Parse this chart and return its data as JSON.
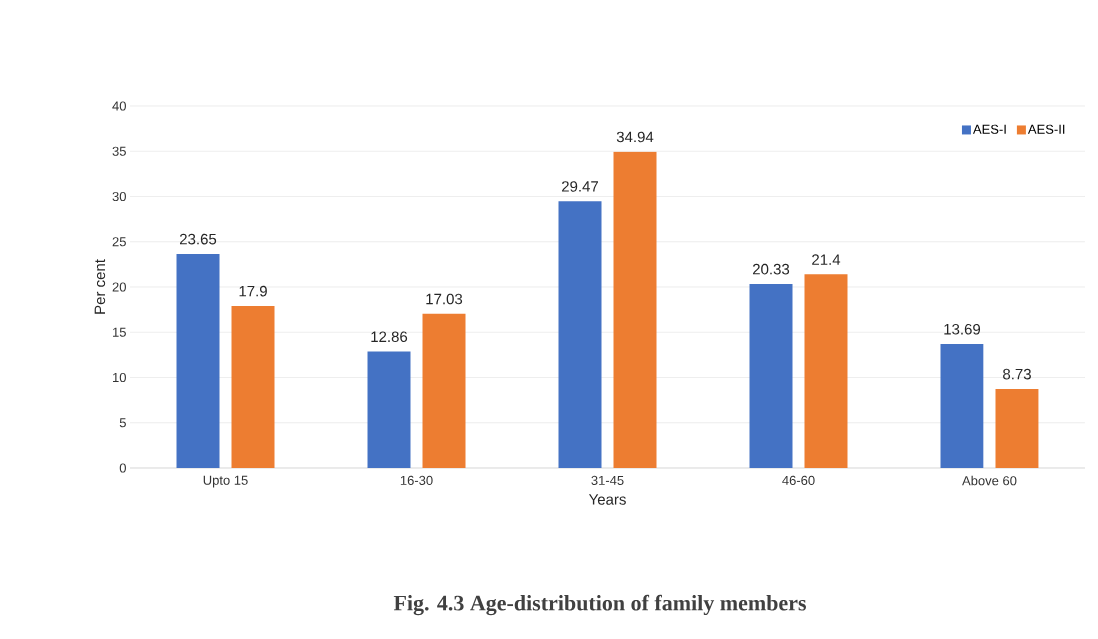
{
  "chart_data": {
    "type": "bar",
    "title": "Fig. 4.3 Age-distribution of family members",
    "xlabel": "Years",
    "ylabel": "Per cent",
    "categories": [
      "Upto 15",
      "16-30",
      "31-45",
      "46-60",
      "Above 60"
    ],
    "series": [
      {
        "name": "AES-I",
        "color": "#4472c4",
        "values": [
          23.65,
          12.86,
          29.47,
          20.33,
          13.69
        ]
      },
      {
        "name": "AES-II",
        "color": "#ed7d31",
        "values": [
          17.9,
          17.03,
          34.94,
          21.4,
          8.73
        ]
      }
    ],
    "ylim": [
      0,
      40
    ],
    "yticks": [
      0,
      5,
      10,
      15,
      20,
      25,
      30,
      35,
      40
    ],
    "grid": "y",
    "legend": "top right",
    "data_labels": true
  }
}
